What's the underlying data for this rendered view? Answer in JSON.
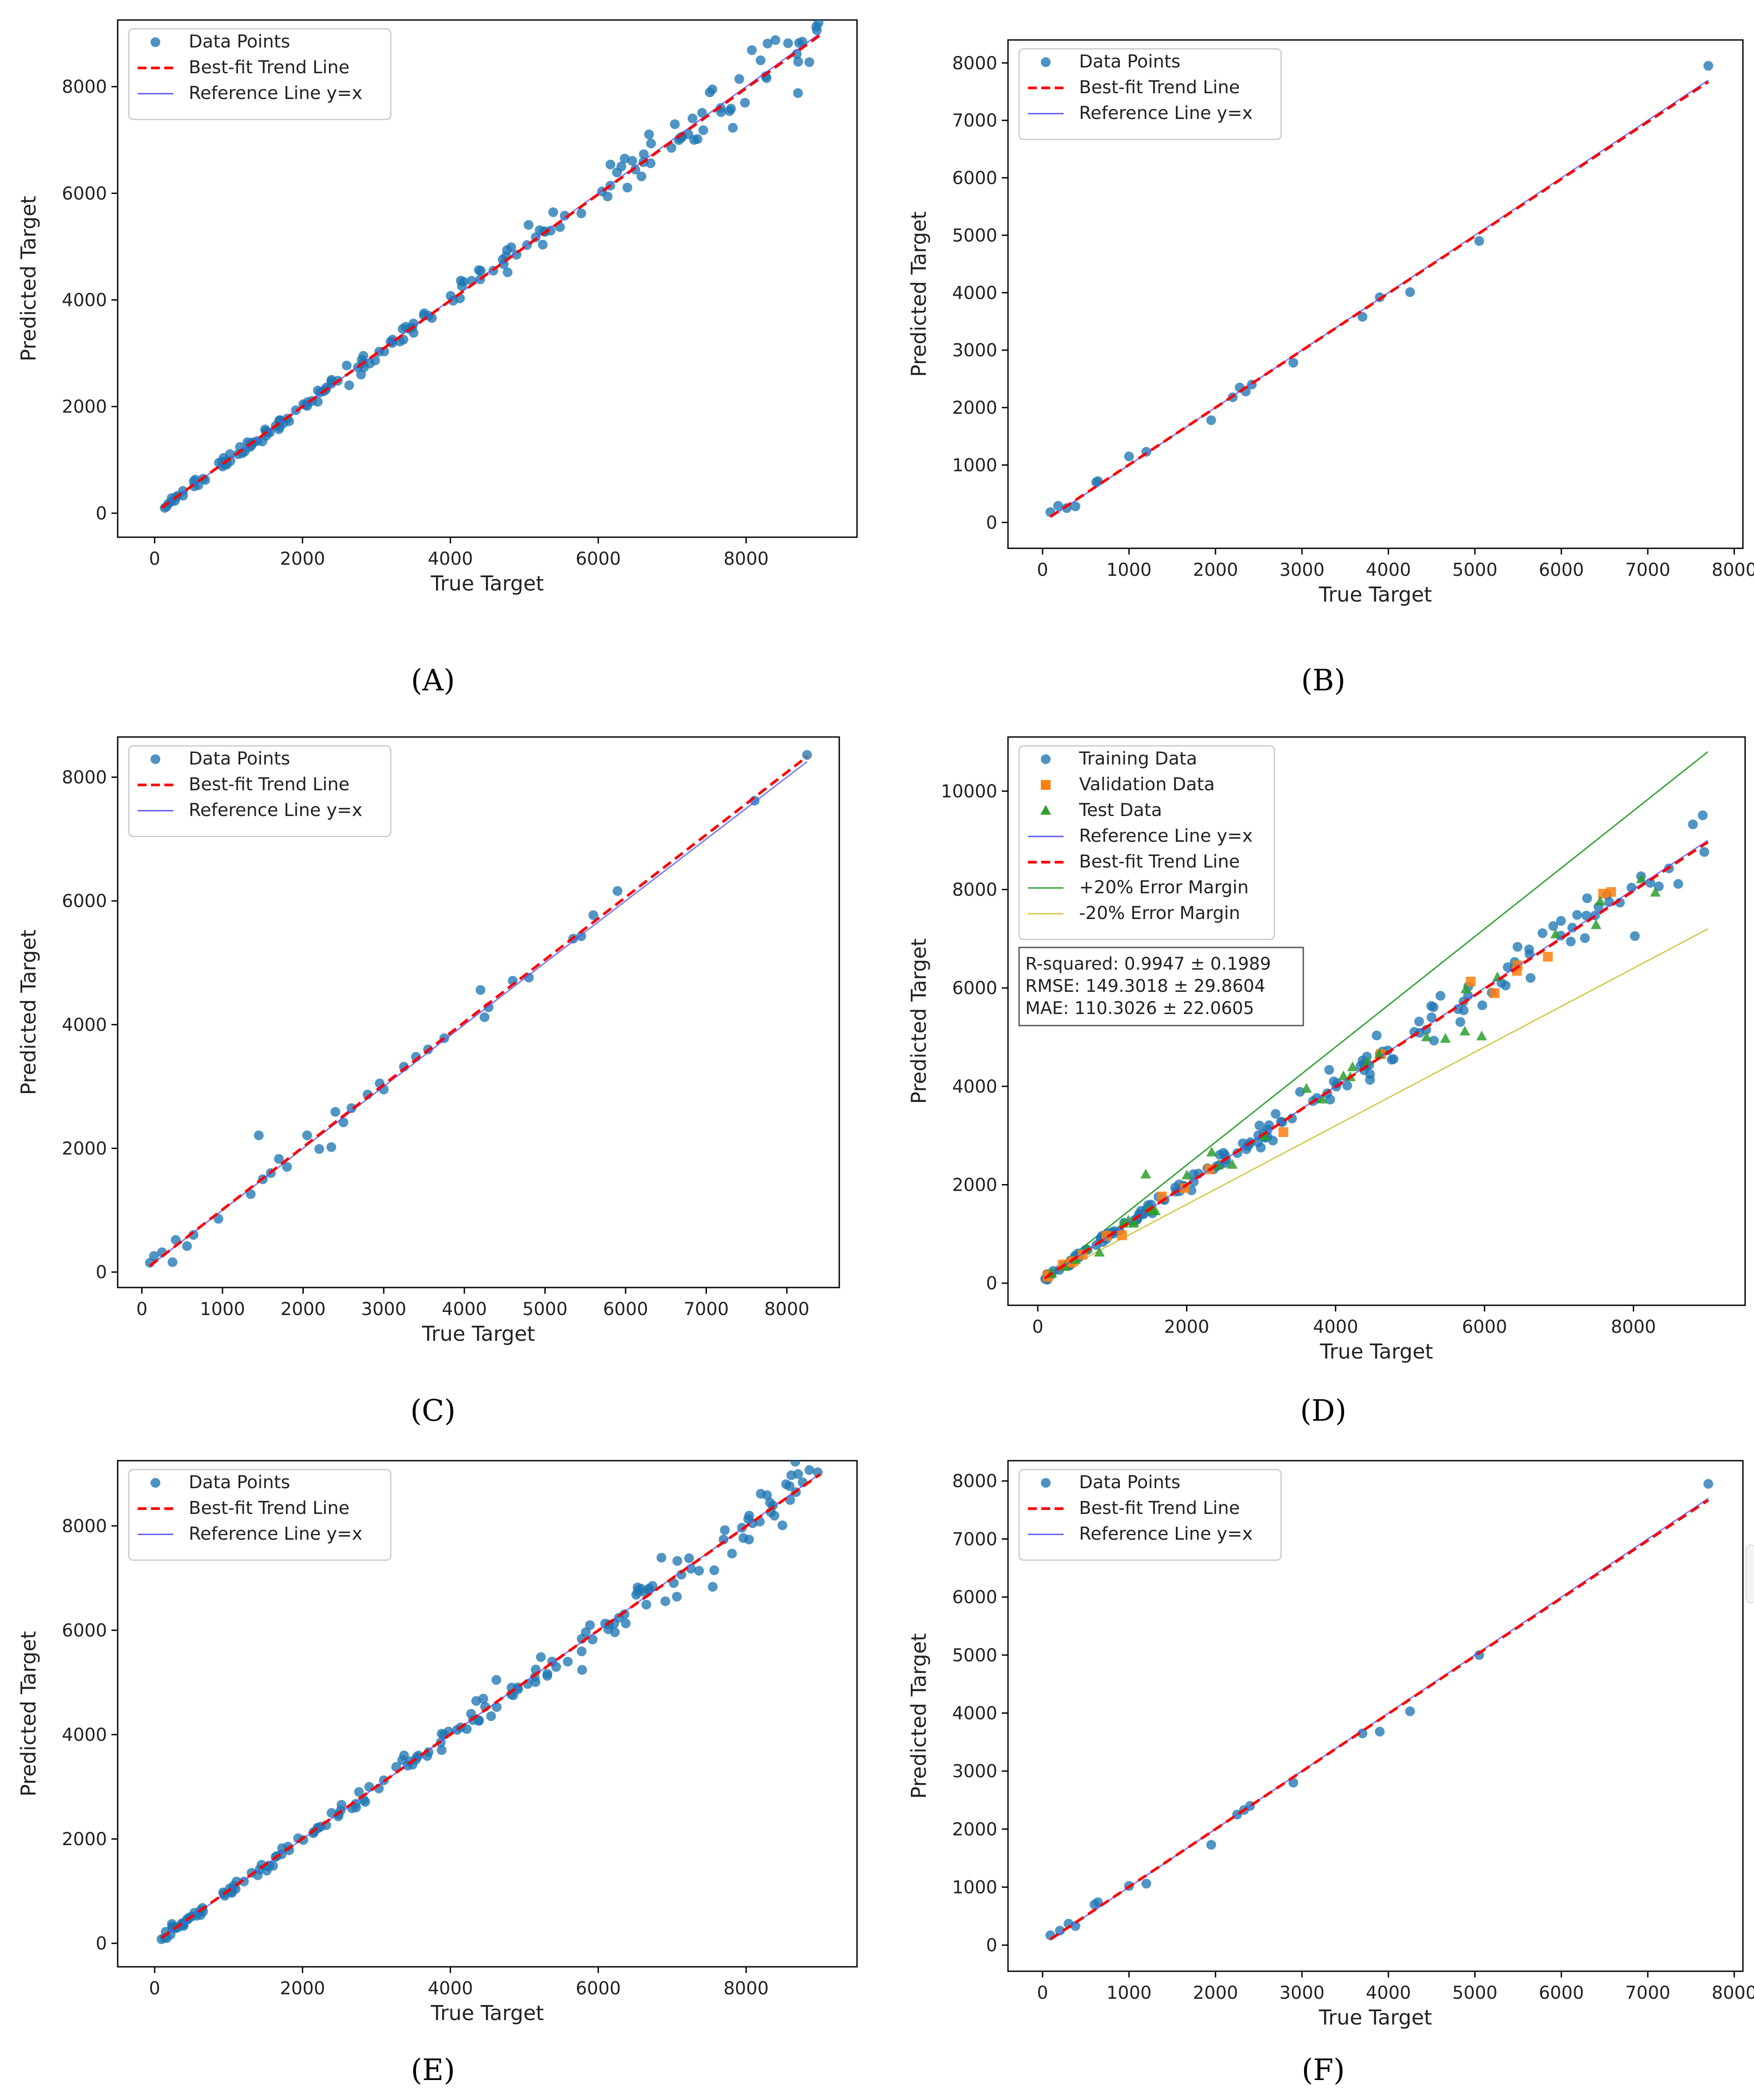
{
  "figure": {
    "panel_labels": [
      "(A)",
      "(B)",
      "(C)",
      "(D)",
      "(E)",
      "(F)"
    ]
  },
  "colors": {
    "data_points": "#1f77b4",
    "trend_line": "#ff0000",
    "reference_line": "#5555ff",
    "validation": "#ff7f0e",
    "test": "#2ca02c",
    "margin_plus": "#2ca02c",
    "margin_minus": "#d4c84a"
  },
  "chart_data": [
    {
      "panel": "A",
      "type": "scatter",
      "xlabel": "True Target",
      "ylabel": "Predicted Target",
      "xlim": [
        -500,
        9500
      ],
      "ylim": [
        -450,
        9250
      ],
      "xticks": [
        0,
        2000,
        4000,
        6000,
        8000
      ],
      "yticks": [
        0,
        2000,
        4000,
        6000,
        8000
      ],
      "legend": {
        "position": "top-left",
        "entries": [
          "Data Points",
          "Best-fit Trend Line",
          "Reference Line y=x"
        ]
      },
      "series": [
        {
          "name": "Data Points",
          "kind": "scatter",
          "count": 180,
          "x_range": [
            90,
            9000
          ],
          "seed": 11,
          "noise": 0.035
        }
      ],
      "reference_line": {
        "slope": 1,
        "x_range": [
          90,
          9000
        ]
      },
      "trend_line": {
        "slope": 0.995,
        "intercept": 10,
        "x_range": [
          90,
          9000
        ]
      },
      "annotations": []
    },
    {
      "panel": "B",
      "type": "scatter",
      "xlabel": "True Target",
      "ylabel": "Predicted Target",
      "xlim": [
        -400,
        8100
      ],
      "ylim": [
        -450,
        8400
      ],
      "xticks": [
        0,
        1000,
        2000,
        3000,
        4000,
        5000,
        6000,
        7000,
        8000
      ],
      "yticks": [
        0,
        1000,
        2000,
        3000,
        4000,
        5000,
        6000,
        7000,
        8000
      ],
      "legend": {
        "position": "top-left",
        "entries": [
          "Data Points",
          "Best-fit Trend Line",
          "Reference Line y=x"
        ]
      },
      "series": [
        {
          "name": "Data Points",
          "kind": "scatter",
          "points": [
            [
              90,
              180
            ],
            [
              180,
              290
            ],
            [
              280,
              250
            ],
            [
              380,
              280
            ],
            [
              620,
              700
            ],
            [
              640,
              720
            ],
            [
              1000,
              1150
            ],
            [
              1200,
              1230
            ],
            [
              1950,
              1780
            ],
            [
              2200,
              2180
            ],
            [
              2280,
              2350
            ],
            [
              2350,
              2280
            ],
            [
              2420,
              2400
            ],
            [
              2900,
              2780
            ],
            [
              3700,
              3580
            ],
            [
              3900,
              3920
            ],
            [
              4250,
              4010
            ],
            [
              5050,
              4900
            ],
            [
              7700,
              7950
            ]
          ]
        }
      ],
      "reference_line": {
        "slope": 1,
        "x_range": [
          90,
          7700
        ]
      },
      "trend_line": {
        "slope": 0.995,
        "intercept": 10,
        "x_range": [
          90,
          7700
        ]
      },
      "annotations": []
    },
    {
      "panel": "C",
      "type": "scatter",
      "xlabel": "True Target",
      "ylabel": "Predicted Target",
      "xlim": [
        -300,
        8650
      ],
      "ylim": [
        -250,
        8650
      ],
      "xticks": [
        0,
        1000,
        2000,
        3000,
        4000,
        5000,
        6000,
        7000,
        8000
      ],
      "yticks": [
        0,
        2000,
        4000,
        6000,
        8000
      ],
      "legend": {
        "position": "top-left",
        "entries": [
          "Data Points",
          "Best-fit Trend Line",
          "Reference Line y=x"
        ]
      },
      "series": [
        {
          "name": "Data Points",
          "kind": "scatter",
          "points": [
            [
              100,
              150
            ],
            [
              150,
              260
            ],
            [
              250,
              320
            ],
            [
              380,
              160
            ],
            [
              420,
              520
            ],
            [
              560,
              420
            ],
            [
              640,
              600
            ],
            [
              950,
              860
            ],
            [
              1350,
              1260
            ],
            [
              1450,
              2210
            ],
            [
              1500,
              1500
            ],
            [
              1600,
              1600
            ],
            [
              1700,
              1830
            ],
            [
              1800,
              1700
            ],
            [
              2050,
              2210
            ],
            [
              2200,
              1990
            ],
            [
              2350,
              2020
            ],
            [
              2400,
              2590
            ],
            [
              2500,
              2420
            ],
            [
              2600,
              2650
            ],
            [
              2800,
              2870
            ],
            [
              2950,
              3050
            ],
            [
              3000,
              2950
            ],
            [
              3250,
              3320
            ],
            [
              3400,
              3480
            ],
            [
              3550,
              3600
            ],
            [
              3750,
              3780
            ],
            [
              4200,
              4560
            ],
            [
              4250,
              4120
            ],
            [
              4300,
              4280
            ],
            [
              4600,
              4710
            ],
            [
              4800,
              4760
            ],
            [
              5350,
              5390
            ],
            [
              5450,
              5430
            ],
            [
              5600,
              5770
            ],
            [
              5900,
              6160
            ],
            [
              7600,
              7620
            ],
            [
              8250,
              8360
            ]
          ]
        }
      ],
      "reference_line": {
        "slope": 1,
        "x_range": [
          100,
          8250
        ]
      },
      "trend_line": {
        "slope": 1.01,
        "intercept": 0,
        "x_range": [
          100,
          8250
        ]
      },
      "annotations": []
    },
    {
      "panel": "D",
      "type": "scatter",
      "xlabel": "True Target",
      "ylabel": "Predicted Target",
      "xlim": [
        -400,
        9500
      ],
      "ylim": [
        -450,
        11100
      ],
      "xticks": [
        0,
        2000,
        4000,
        6000,
        8000
      ],
      "yticks": [
        0,
        2000,
        4000,
        6000,
        8000,
        10000
      ],
      "legend": {
        "position": "top-left",
        "entries": [
          "Training Data",
          "Validation Data",
          "Test Data",
          "Reference Line y=x",
          "Best-fit Trend Line",
          "+20% Error Margin",
          "-20% Error Margin"
        ]
      },
      "series": [
        {
          "name": "Training Data",
          "kind": "scatter",
          "count": 170,
          "x_range": [
            90,
            9000
          ],
          "seed": 41,
          "noise": 0.04
        },
        {
          "name": "Validation Data",
          "kind": "scatter",
          "count": 19,
          "x_range": [
            100,
            7700
          ],
          "seed": 42,
          "noise": 0.05,
          "extra_points": [
            [
              7700,
              7950
            ]
          ]
        },
        {
          "name": "Test Data",
          "kind": "scatter",
          "count": 36,
          "x_range": [
            100,
            8300
          ],
          "seed": 43,
          "noise": 0.06,
          "extra_points": [
            [
              1450,
              2210
            ]
          ]
        }
      ],
      "reference_line": {
        "slope": 1,
        "x_range": [
          90,
          9000
        ]
      },
      "trend_line": {
        "slope": 0.995,
        "intercept": 10,
        "x_range": [
          90,
          9000
        ]
      },
      "margin_lines": [
        {
          "name": "+20% Error Margin",
          "slope": 1.2
        },
        {
          "name": "-20% Error Margin",
          "slope": 0.8
        }
      ],
      "annotations": [
        "R-squared: 0.9947 ± 0.1989",
        "RMSE: 149.3018 ± 29.8604",
        "MAE: 110.3026 ± 22.0605"
      ]
    },
    {
      "panel": "E",
      "type": "scatter",
      "xlabel": "True Target",
      "ylabel": "Predicted Target",
      "xlim": [
        -500,
        9500
      ],
      "ylim": [
        -450,
        9250
      ],
      "xticks": [
        0,
        2000,
        4000,
        6000,
        8000
      ],
      "yticks": [
        0,
        2000,
        4000,
        6000,
        8000
      ],
      "legend": {
        "position": "top-left",
        "entries": [
          "Data Points",
          "Best-fit Trend Line",
          "Reference Line y=x"
        ]
      },
      "series": [
        {
          "name": "Data Points",
          "kind": "scatter",
          "count": 180,
          "x_range": [
            90,
            9000
          ],
          "seed": 77,
          "noise": 0.035
        }
      ],
      "reference_line": {
        "slope": 1,
        "x_range": [
          90,
          9000
        ]
      },
      "trend_line": {
        "slope": 0.997,
        "intercept": 15,
        "x_range": [
          90,
          9000
        ]
      },
      "annotations": []
    },
    {
      "panel": "F",
      "type": "scatter",
      "xlabel": "True Target",
      "ylabel": "Predicted Target",
      "xlim": [
        -400,
        8100
      ],
      "ylim": [
        -450,
        8350
      ],
      "xticks": [
        0,
        1000,
        2000,
        3000,
        4000,
        5000,
        6000,
        7000,
        8000
      ],
      "yticks": [
        0,
        1000,
        2000,
        3000,
        4000,
        5000,
        6000,
        7000,
        8000
      ],
      "legend": {
        "position": "top-left",
        "entries": [
          "Data Points",
          "Best-fit Trend Line",
          "Reference Line y=x"
        ]
      },
      "series": [
        {
          "name": "Data Points",
          "kind": "scatter",
          "points": [
            [
              90,
              170
            ],
            [
              200,
              250
            ],
            [
              300,
              370
            ],
            [
              380,
              330
            ],
            [
              600,
              700
            ],
            [
              640,
              740
            ],
            [
              1000,
              1020
            ],
            [
              1200,
              1060
            ],
            [
              1950,
              1730
            ],
            [
              2250,
              2250
            ],
            [
              2330,
              2330
            ],
            [
              2400,
              2400
            ],
            [
              2900,
              2800
            ],
            [
              3700,
              3650
            ],
            [
              3900,
              3680
            ],
            [
              4250,
              4030
            ],
            [
              5050,
              5000
            ],
            [
              7700,
              7950
            ]
          ]
        }
      ],
      "reference_line": {
        "slope": 1,
        "x_range": [
          90,
          7700
        ]
      },
      "trend_line": {
        "slope": 0.995,
        "intercept": 10,
        "x_range": [
          90,
          7700
        ]
      },
      "annotations": []
    }
  ]
}
